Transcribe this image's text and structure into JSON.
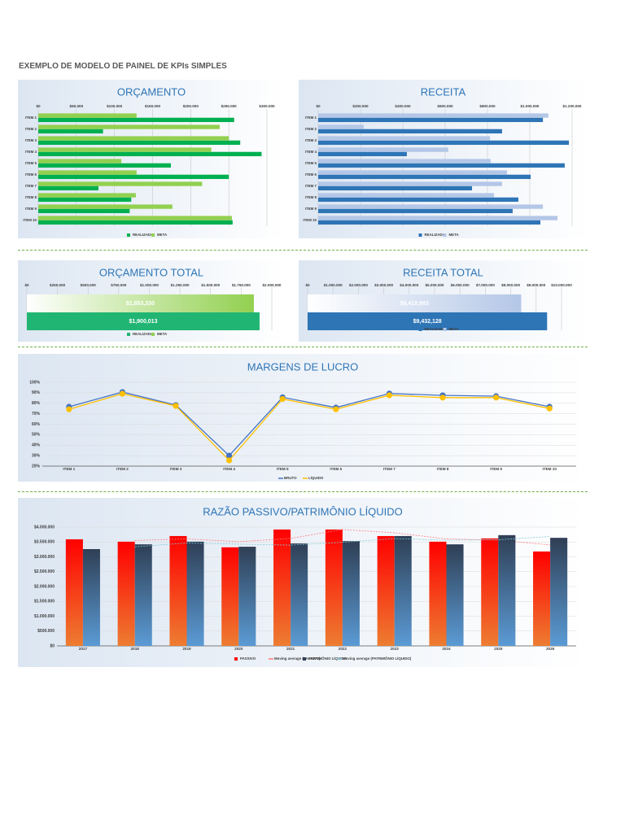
{
  "header": {
    "title": "EXEMPLO DE MODELO DE PAINEL DE KPIs SIMPLES"
  },
  "chart_data": [
    {
      "type": "bar",
      "horizontal": true,
      "title": "ORÇAMENTO",
      "categories": [
        "ITEM 1",
        "ITEM 2",
        "ITEM 3",
        "ITEM 4",
        "ITEM 5",
        "ITEM 6",
        "ITEM 7",
        "ITEM 8",
        "ITEM 9",
        "ITEM 10"
      ],
      "series": [
        {
          "name": "REALIZADO",
          "color": "#00b050",
          "values": [
            257000,
            85000,
            265000,
            293000,
            174000,
            250000,
            79000,
            122000,
            120000,
            255000
          ]
        },
        {
          "name": "META",
          "color": "#92d050",
          "values": [
            129000,
            238000,
            250000,
            227000,
            109000,
            129000,
            215000,
            128000,
            176000,
            254000
          ]
        }
      ],
      "xlim": [
        0,
        300000
      ],
      "xticks": [
        {
          "value": 0,
          "label": "$0"
        },
        {
          "value": 50000,
          "label": "$50.000"
        },
        {
          "value": 100000,
          "label": "$100.000"
        },
        {
          "value": 150000,
          "label": "$150.000"
        },
        {
          "value": 200000,
          "label": "$200.000"
        },
        {
          "value": 250000,
          "label": "$250.000"
        },
        {
          "value": 300000,
          "label": "$300.000"
        }
      ],
      "grid": true,
      "legend": "bottom"
    },
    {
      "type": "bar",
      "horizontal": true,
      "title": "RECEITA",
      "categories": [
        "ITEM 1",
        "ITEM 2",
        "ITEM 3",
        "ITEM 4",
        "ITEM 5",
        "ITEM 6",
        "ITEM 7",
        "ITEM 8",
        "ITEM 9",
        "ITEM 10"
      ],
      "series": [
        {
          "name": "REALIZADO",
          "color": "#2e75b6",
          "values": [
            1062000,
            869000,
            1185000,
            419000,
            1165000,
            1004000,
            727000,
            946000,
            919000,
            1050000
          ]
        },
        {
          "name": "META",
          "color": "#b4c7e7",
          "values": [
            1088000,
            215000,
            812000,
            615000,
            815000,
            892000,
            869000,
            831000,
            1062000,
            1131000
          ]
        }
      ],
      "xlim": [
        0,
        1200000
      ],
      "xticks": [
        {
          "value": 0,
          "label": "$0"
        },
        {
          "value": 200000,
          "label": "$200.000"
        },
        {
          "value": 400000,
          "label": "$400.000"
        },
        {
          "value": 600000,
          "label": "$600.000"
        },
        {
          "value": 800000,
          "label": "$800.000"
        },
        {
          "value": 1000000,
          "label": "$1.000.000"
        },
        {
          "value": 1200000,
          "label": "$1.200.000"
        }
      ],
      "grid": true,
      "legend": "bottom"
    },
    {
      "type": "bar",
      "horizontal": true,
      "title": "ORÇAMENTO TOTAL",
      "categories": [
        null
      ],
      "series": [
        {
          "name": "REALIZADO",
          "color": "#21b573",
          "values": [
            1900013
          ],
          "value_labels": [
            "$1,900,013"
          ]
        },
        {
          "name": "META",
          "color": "#92d050",
          "values": [
            1853330
          ],
          "value_labels": [
            "$1,853,330"
          ]
        }
      ],
      "xlim": [
        0,
        2000000
      ],
      "xticks": [
        {
          "value": 0,
          "label": "$0"
        },
        {
          "value": 250000,
          "label": "$250.000"
        },
        {
          "value": 500000,
          "label": "$500.000"
        },
        {
          "value": 750000,
          "label": "$750.000"
        },
        {
          "value": 1000000,
          "label": "$1.000.000"
        },
        {
          "value": 1250000,
          "label": "$1.250.000"
        },
        {
          "value": 1500000,
          "label": "$1.500.000"
        },
        {
          "value": 1750000,
          "label": "$1.750.000"
        },
        {
          "value": 2000000,
          "label": "$2.000.000"
        }
      ],
      "grid": true,
      "legend": "bottom"
    },
    {
      "type": "bar",
      "horizontal": true,
      "title": "RECEITA TOTAL",
      "categories": [
        null
      ],
      "series": [
        {
          "name": "REALIZADO",
          "color": "#2e75b6",
          "values": [
            9432128
          ],
          "value_labels": [
            "$9,432,128"
          ]
        },
        {
          "name": "META",
          "color": "#b4c7e7",
          "values": [
            8410993
          ],
          "value_labels": [
            "$8,410,993"
          ]
        }
      ],
      "xlim": [
        0,
        10000000
      ],
      "xticks": [
        {
          "value": 0,
          "label": "$0"
        },
        {
          "value": 1000000,
          "label": "$1.000.000"
        },
        {
          "value": 2000000,
          "label": "$2.000.000"
        },
        {
          "value": 3000000,
          "label": "$3.000.000"
        },
        {
          "value": 4000000,
          "label": "$4.000.000"
        },
        {
          "value": 5000000,
          "label": "$5.000.000"
        },
        {
          "value": 6000000,
          "label": "$6.000.000"
        },
        {
          "value": 7000000,
          "label": "$7.000.000"
        },
        {
          "value": 8000000,
          "label": "$8.000.000"
        },
        {
          "value": 9000000,
          "label": "$9.000.000"
        },
        {
          "value": 10000000,
          "label": "$10.000.000"
        }
      ],
      "grid": true,
      "legend": "bottom"
    },
    {
      "type": "line",
      "title": "MARGENS DE LUCRO",
      "categories": [
        "ITEM 1",
        "ITEM 2",
        "ITEM 3",
        "ITEM 4",
        "ITEM 5",
        "ITEM 6",
        "ITEM 7",
        "ITEM 8",
        "ITEM 9",
        "ITEM 10"
      ],
      "series": [
        {
          "name": "BRUTO",
          "color": "#4472c4",
          "values": [
            76.7,
            90.7,
            78.3,
            30,
            85.7,
            75.9,
            89.3,
            87.6,
            86.8,
            76.7
          ]
        },
        {
          "name": "LÍQUIDO",
          "color": "#ffc000",
          "values": [
            74.3,
            89.1,
            77.5,
            25.5,
            84.1,
            74.3,
            87.6,
            85.4,
            85.4,
            75
          ]
        }
      ],
      "ylim": [
        20,
        100
      ],
      "yticks": [
        {
          "value": 20,
          "label": "20%"
        },
        {
          "value": 30,
          "label": "30%"
        },
        {
          "value": 40,
          "label": "40%"
        },
        {
          "value": 50,
          "label": "50%"
        },
        {
          "value": 60,
          "label": "60%"
        },
        {
          "value": 70,
          "label": "70%"
        },
        {
          "value": 80,
          "label": "80%"
        },
        {
          "value": 90,
          "label": "90%"
        },
        {
          "value": 100,
          "label": "100%"
        }
      ],
      "grid": true,
      "legend": "bottom"
    },
    {
      "type": "bar",
      "title": "RAZÃO PASSIVO/PATRIMÔNIO LÍQUIDO",
      "categories": [
        "2017",
        "2018",
        "2019",
        "2020",
        "2021",
        "2022",
        "2023",
        "2024",
        "2025",
        "2026"
      ],
      "series": [
        {
          "name": "PASSIVO",
          "color": "#ff0000",
          "gradient_to": "#ed7d31",
          "values": [
            3590000,
            3510000,
            3700000,
            3320000,
            3920000,
            3920000,
            3700000,
            3510000,
            3620000,
            3180000
          ]
        },
        {
          "name": "Moving average (PASSIVO)",
          "type": "line",
          "color": "#ff7c80",
          "values": [
            null,
            3550000,
            3605000,
            3510000,
            3620000,
            3920000,
            3810000,
            3605000,
            3565000,
            3400000
          ]
        },
        {
          "name": "PATRIMÔNIO LÍQUIDO",
          "color": "#2f3f55",
          "gradient_to": "#5b9bd5",
          "values": [
            3260000,
            3420000,
            3510000,
            3340000,
            3450000,
            3530000,
            3700000,
            3420000,
            3730000,
            3640000
          ]
        },
        {
          "name": "Moving average (PATRIMÔNIO LÍQUIDO)",
          "type": "line",
          "color": "#7fc8d8",
          "values": [
            null,
            3340000,
            3465000,
            3425000,
            3395000,
            3490000,
            3615000,
            3560000,
            3575000,
            3685000
          ]
        }
      ],
      "ylim": [
        0,
        4000000
      ],
      "yticks": [
        {
          "value": 0,
          "label": "$0"
        },
        {
          "value": 500000,
          "label": "$500.000"
        },
        {
          "value": 1000000,
          "label": "$1.000.000"
        },
        {
          "value": 1500000,
          "label": "$1.500.000"
        },
        {
          "value": 2000000,
          "label": "$2.000.000"
        },
        {
          "value": 2500000,
          "label": "$2.500.000"
        },
        {
          "value": 3000000,
          "label": "$3.000.000"
        },
        {
          "value": 3500000,
          "label": "$3.500.000"
        },
        {
          "value": 4000000,
          "label": "$4.000.000"
        }
      ],
      "grid": true,
      "legend": "bottom"
    }
  ]
}
